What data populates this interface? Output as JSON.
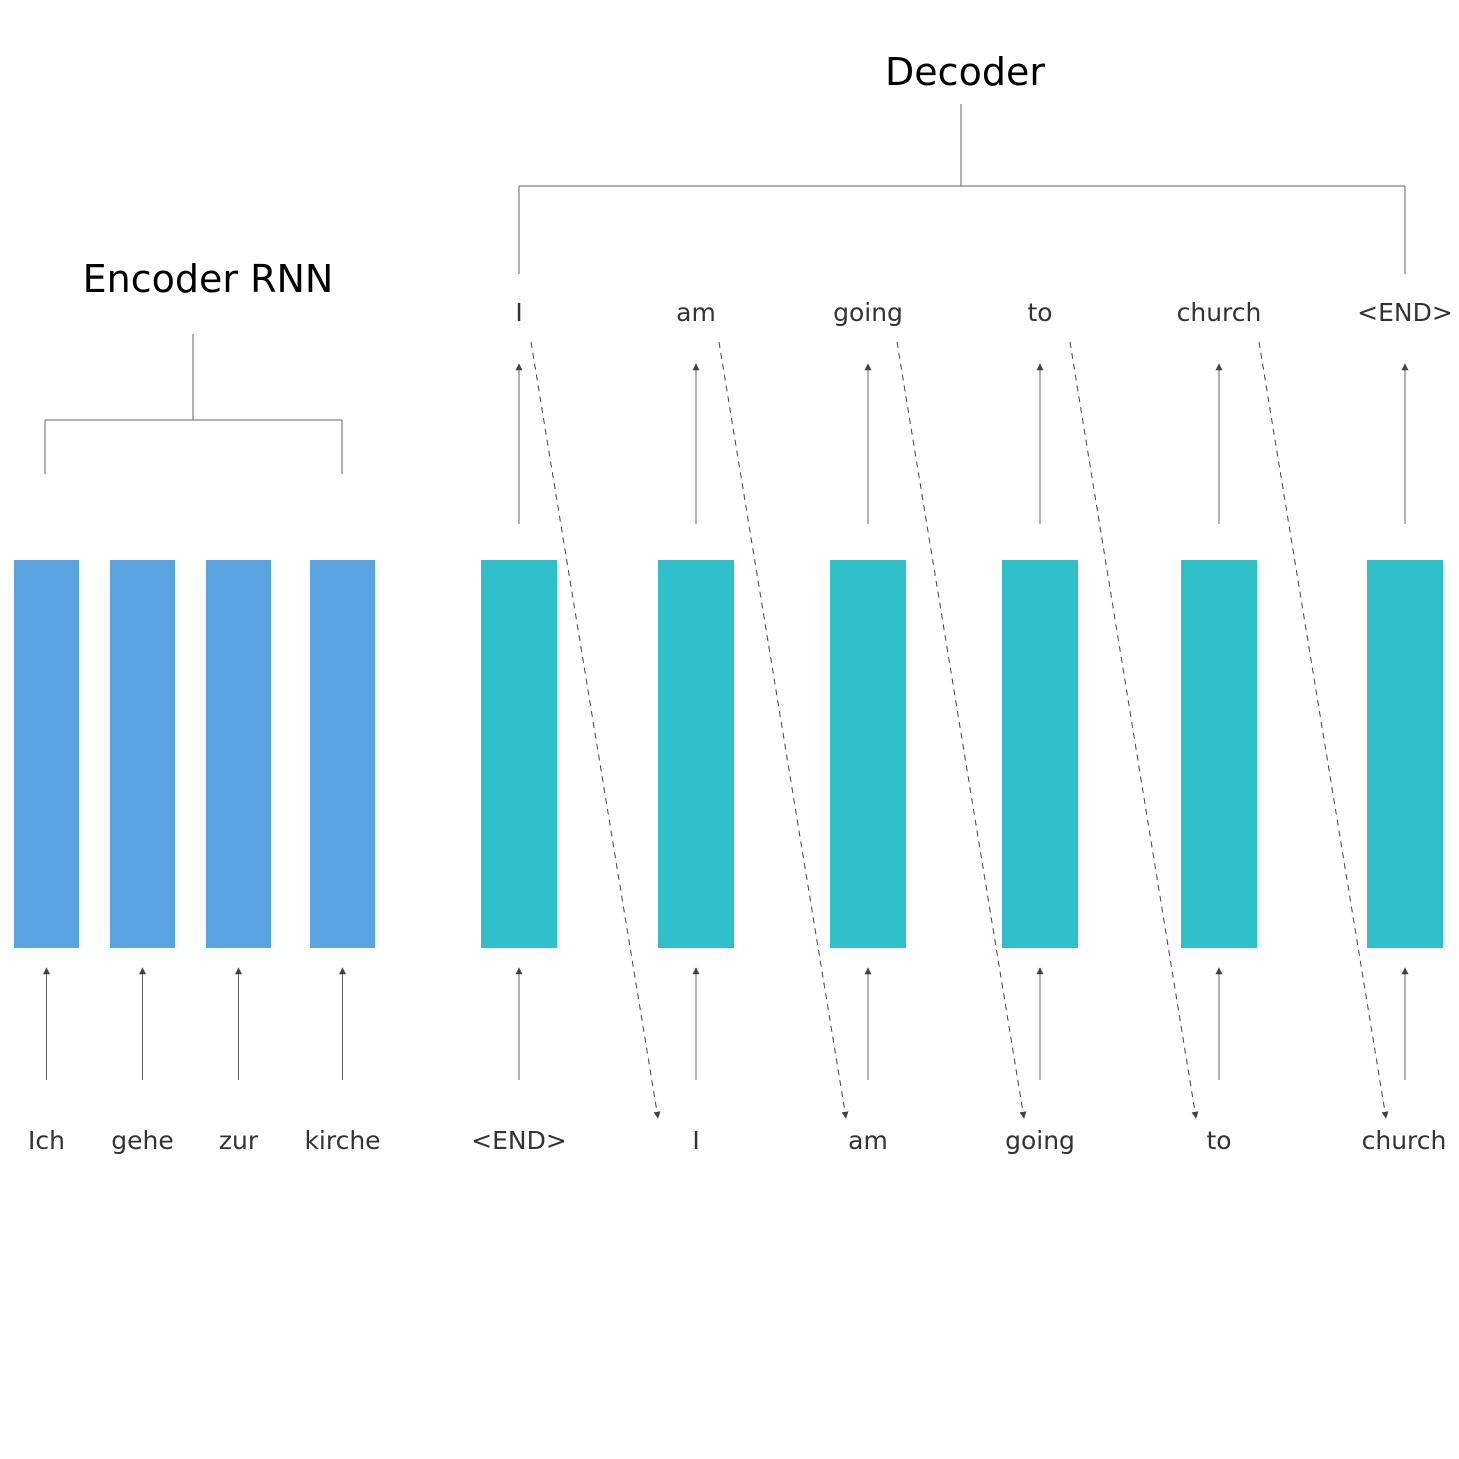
{
  "encoder": {
    "title": "Encoder RNN",
    "color": "#5aa3e1",
    "inputs": [
      "Ich",
      "gehe",
      "zur",
      "kirche"
    ]
  },
  "decoder": {
    "title": "Decoder",
    "color": "#2fbfc9",
    "outputs": [
      "I",
      "am",
      "going",
      "to",
      "church",
      "<END>"
    ],
    "inputs": [
      "<END>",
      "I",
      "am",
      "going",
      "to",
      "church"
    ]
  },
  "colors": {
    "line": "#666666",
    "text": "#333333"
  }
}
